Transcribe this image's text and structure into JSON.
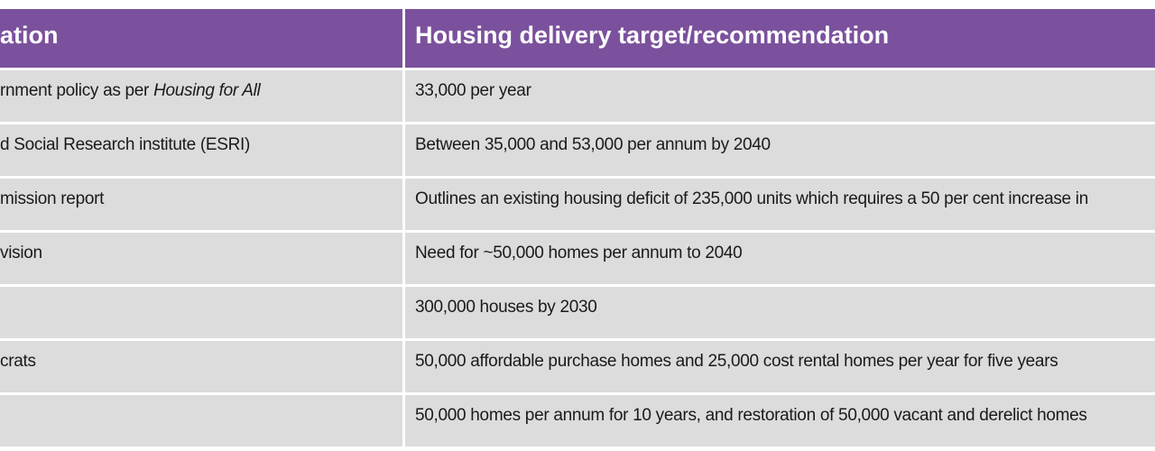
{
  "table": {
    "header": [
      "ation",
      "Housing delivery target/recommendation"
    ],
    "rows": [
      {
        "source": "rnment policy as per",
        "source_italic": "Housing for All",
        "target": "33,000 per year"
      },
      {
        "source": "d Social Research institute (ESRI)",
        "target": "Between 35,000 and 53,000 per annum by 2040"
      },
      {
        "source": "mission report",
        "target": "Outlines an existing housing deficit of 235,000 units which requires a 50 per cent increase in"
      },
      {
        "source": "vision",
        "target": "Need for ~50,000 homes per annum to 2040"
      },
      {
        "target": "300,000 houses by 2030"
      },
      {
        "source": "crats",
        "target": "50,000 affordable purchase homes and 25,000 cost rental homes per year for five years"
      },
      {
        "target": "50,000 homes per annum for 10 years, and restoration of 50,000 vacant and derelict homes"
      }
    ]
  }
}
